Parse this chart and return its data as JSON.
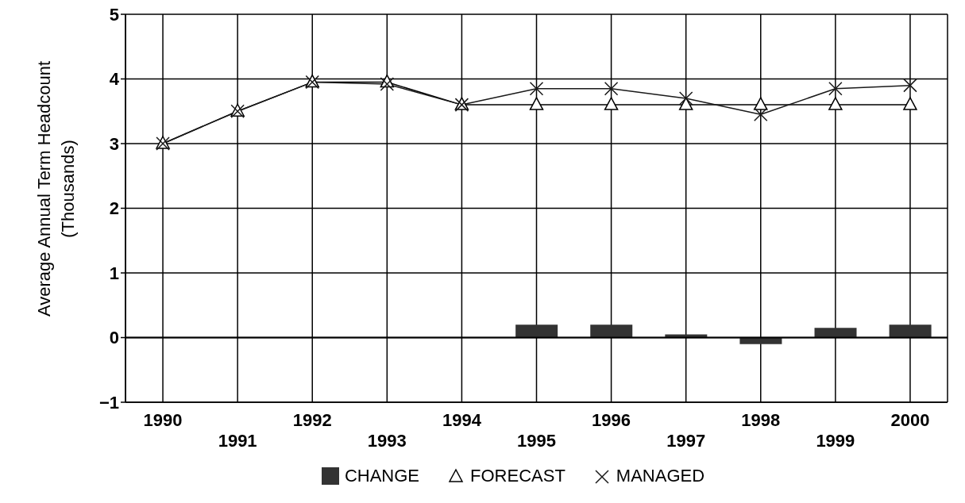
{
  "chart_data": {
    "type": "bar",
    "categories": [
      "1990",
      "1991",
      "1992",
      "1993",
      "1994",
      "1995",
      "1996",
      "1997",
      "1998",
      "1999",
      "2000"
    ],
    "ylabel": "Average Annual Term Headcount (Thousands)",
    "ylim": [
      -1,
      5
    ],
    "yticks": [
      {
        "value": -1,
        "label": "−1"
      },
      0,
      1,
      2,
      3,
      4,
      5
    ],
    "grid": true,
    "legend": "bottom",
    "line_style": "solid",
    "series": [
      {
        "name": "CHANGE",
        "color": "#333333",
        "values": [
          0,
          0,
          0,
          0,
          0,
          0.2,
          0.2,
          0.05,
          -0.1,
          0.15,
          0.2
        ]
      },
      {
        "name": "FORECAST",
        "type": "line",
        "color": "#000000",
        "marker": "triangle",
        "values": [
          3.0,
          3.5,
          3.95,
          3.95,
          3.6,
          3.6,
          3.6,
          3.6,
          3.6,
          3.6,
          3.6
        ]
      },
      {
        "name": "MANAGED",
        "type": "line",
        "color": "#1a1a1a",
        "marker": "cross",
        "values": [
          3.0,
          3.5,
          3.95,
          3.92,
          3.6,
          3.85,
          3.85,
          3.7,
          3.45,
          3.85,
          3.9
        ]
      }
    ]
  }
}
